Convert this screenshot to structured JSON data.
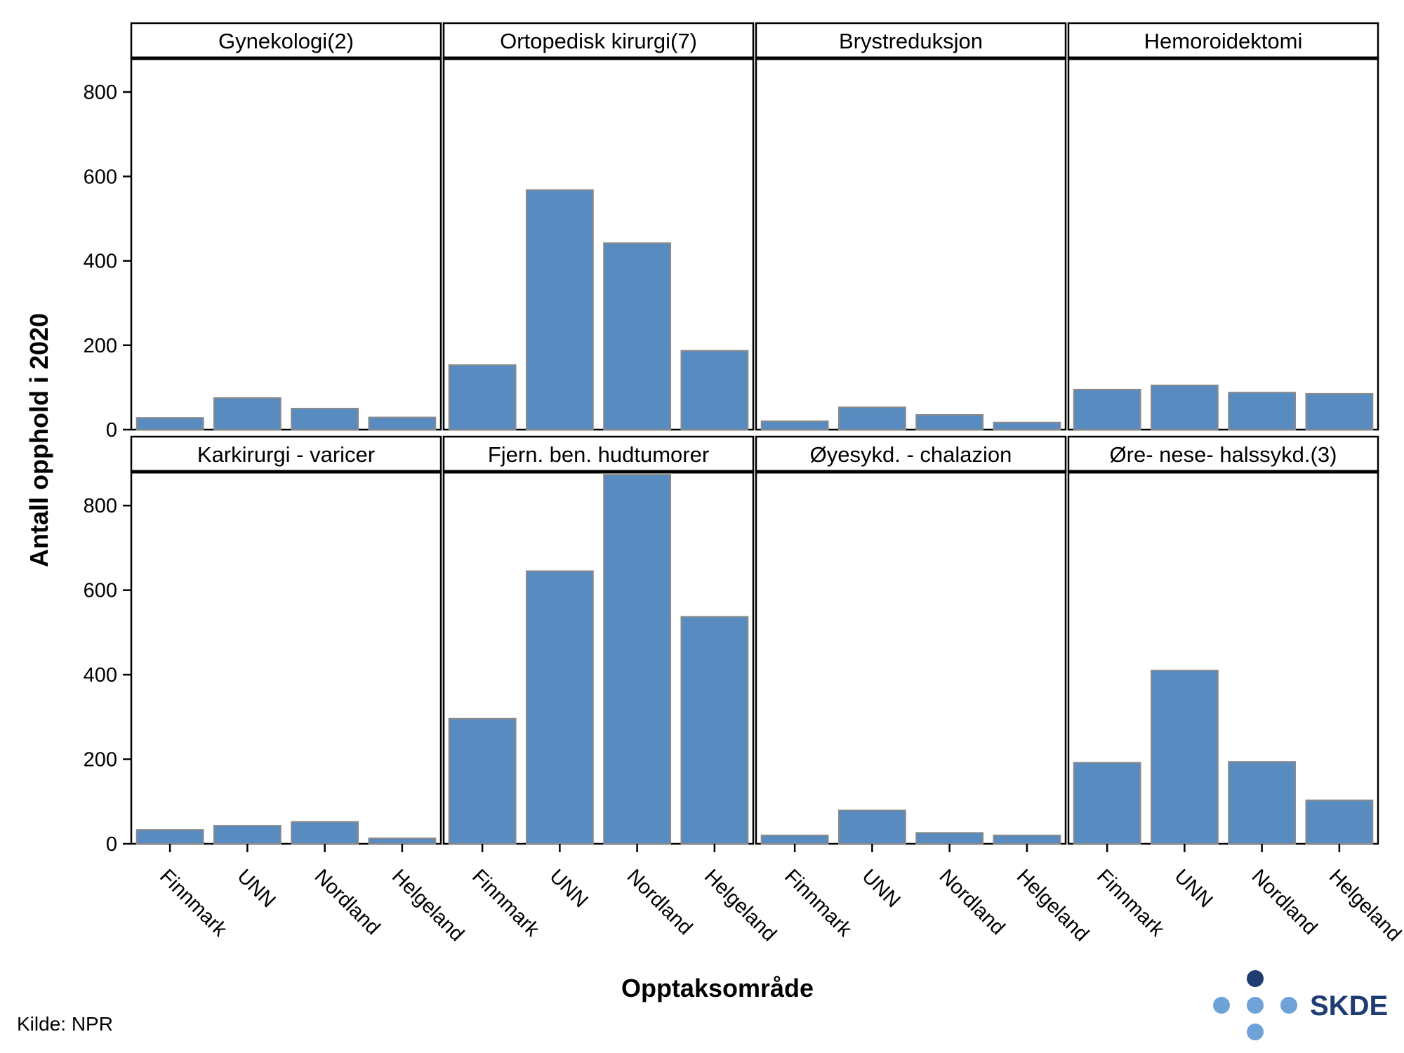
{
  "chart_data": {
    "type": "bar",
    "facet_layout": "2 rows x 4 columns, shared y axis",
    "ylabel": "Antall opphold i 2020",
    "xlabel": "Opptaksområde",
    "ylim": [
      0,
      880
    ],
    "yticks": [
      0,
      200,
      400,
      600,
      800
    ],
    "categories": [
      "Finnmark",
      "UNN",
      "Nordland",
      "Helgeland"
    ],
    "bar_color": "#588bbf",
    "bar_edge_color": "#8a8a8a",
    "panels": [
      {
        "title": "Gynekologi(2)",
        "values": [
          28,
          75,
          50,
          29
        ]
      },
      {
        "title": "Ortopedisk kirurgi(7)",
        "values": [
          153,
          568,
          442,
          187
        ]
      },
      {
        "title": "Brystreduksjon",
        "values": [
          20,
          53,
          35,
          17
        ]
      },
      {
        "title": "Hemoroidektomi",
        "values": [
          95,
          105,
          88,
          85
        ]
      },
      {
        "title": "Karkirurgi - varicer",
        "values": [
          33,
          43,
          52,
          13
        ]
      },
      {
        "title": "Fjern. ben. hudtumorer",
        "values": [
          296,
          645,
          873,
          537
        ]
      },
      {
        "title": "Øyesykd. - chalazion",
        "values": [
          20,
          79,
          26,
          20
        ]
      },
      {
        "title": "Øre- nese- halssykd.(3)",
        "values": [
          192,
          410,
          194,
          103
        ]
      }
    ]
  },
  "source": "Kilde: NPR",
  "logo": {
    "text": "SKDE",
    "text_color": "#1f3c73",
    "dot_dark": "#1f3c73",
    "dot_light": "#6fa3d8"
  }
}
